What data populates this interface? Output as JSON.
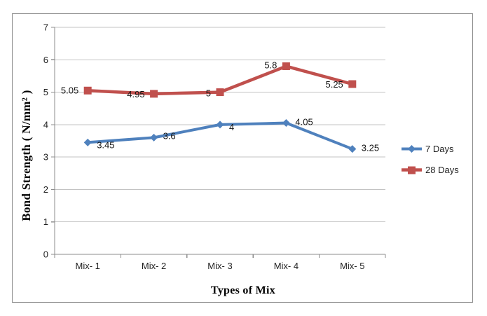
{
  "chart_data": {
    "type": "line",
    "title": "",
    "categories": [
      "Mix- 1",
      "Mix- 2",
      "Mix- 3",
      "Mix- 4",
      "Mix- 5"
    ],
    "series": [
      {
        "name": "7 Days",
        "marker": "diamond",
        "color": "#4F81BD",
        "values": [
          3.45,
          3.6,
          4,
          4.05,
          3.25
        ],
        "data_labels": [
          "3.45",
          "3.6",
          "4",
          "4.05",
          "3.25"
        ]
      },
      {
        "name": "28 Days",
        "marker": "square",
        "color": "#C0504D",
        "values": [
          5.05,
          4.95,
          5,
          5.8,
          5.25
        ],
        "data_labels": [
          "5.05",
          "4.95",
          "5",
          "5.8",
          "5.25"
        ]
      }
    ],
    "xlabel": "Types of Mix",
    "ylabel": "Bond Strength ( N/mm² )",
    "ylim": [
      0,
      7
    ],
    "ytick_step": 1,
    "yticks": [
      "0",
      "1",
      "2",
      "3",
      "4",
      "5",
      "6",
      "7"
    ],
    "grid": true,
    "legend_position": "right",
    "colors": {
      "gridline": "#c3c3c3",
      "axis": "#8c8c8c",
      "frame_border": "#8e8e8e",
      "text": "#1f1f1f"
    }
  }
}
